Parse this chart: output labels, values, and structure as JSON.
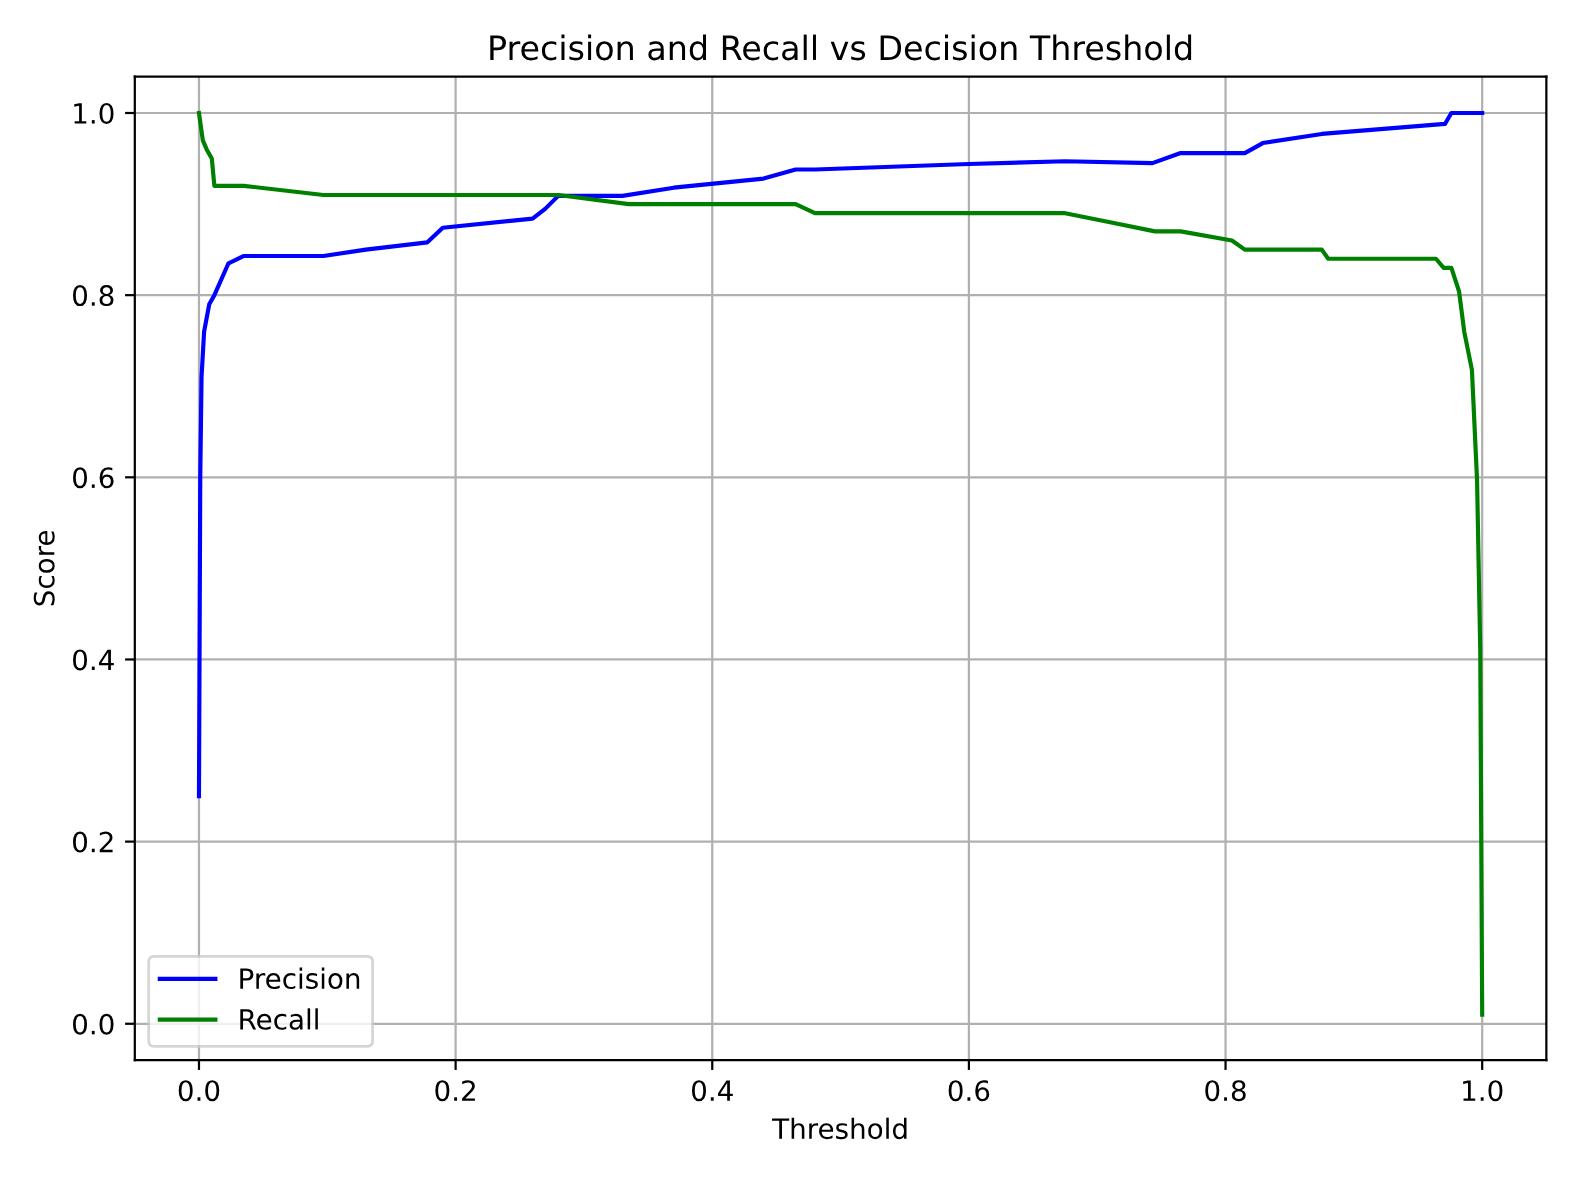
{
  "chart_data": {
    "type": "line",
    "title": "Precision and Recall vs Decision Threshold",
    "xlabel": "Threshold",
    "ylabel": "Score",
    "xlim": [
      -0.05,
      1.05
    ],
    "ylim": [
      -0.04,
      1.04
    ],
    "xticks": [
      {
        "value": 0,
        "label": "0.0"
      },
      0.2,
      0.4,
      0.6,
      0.8,
      {
        "value": 1,
        "label": "1.0"
      }
    ],
    "yticks": [
      {
        "value": 0,
        "label": "0.0"
      },
      0.2,
      0.4,
      0.6,
      0.8,
      {
        "value": 1,
        "label": "1.0"
      }
    ],
    "grid": true,
    "legend": "bottom left",
    "series": [
      {
        "name": "Precision",
        "color": "#0000ff",
        "x": [
          0,
          0.001,
          0.002,
          0.004,
          0.008,
          0.012,
          0.023,
          0.035,
          0.097,
          0.13,
          0.178,
          0.19,
          0.26,
          0.27,
          0.28,
          0.33,
          0.37,
          0.44,
          0.465,
          0.48,
          0.6,
          0.675,
          0.743,
          0.765,
          0.815,
          0.829,
          0.875,
          0.971,
          0.976,
          1.0
        ],
        "values": [
          0.25,
          0.6,
          0.71,
          0.76,
          0.79,
          0.8,
          0.835,
          0.843,
          0.843,
          0.85,
          0.858,
          0.874,
          0.884,
          0.895,
          0.909,
          0.909,
          0.918,
          0.928,
          0.938,
          0.938,
          0.944,
          0.947,
          0.945,
          0.956,
          0.956,
          0.967,
          0.977,
          0.988,
          1.0,
          1.0
        ]
      },
      {
        "name": "Recall",
        "color": "#008000",
        "x": [
          0,
          0.003,
          0.006,
          0.01,
          0.012,
          0.035,
          0.097,
          0.28,
          0.335,
          0.465,
          0.48,
          0.675,
          0.71,
          0.745,
          0.765,
          0.805,
          0.815,
          0.875,
          0.88,
          0.964,
          0.97,
          0.976,
          0.982,
          0.986,
          0.992,
          0.996,
          0.9985,
          1.0
        ],
        "values": [
          1.0,
          0.97,
          0.96,
          0.95,
          0.92,
          0.92,
          0.91,
          0.91,
          0.9,
          0.9,
          0.89,
          0.89,
          0.88,
          0.87,
          0.87,
          0.86,
          0.85,
          0.85,
          0.84,
          0.84,
          0.83,
          0.83,
          0.804,
          0.76,
          0.718,
          0.597,
          0.41,
          0.01
        ]
      }
    ]
  }
}
